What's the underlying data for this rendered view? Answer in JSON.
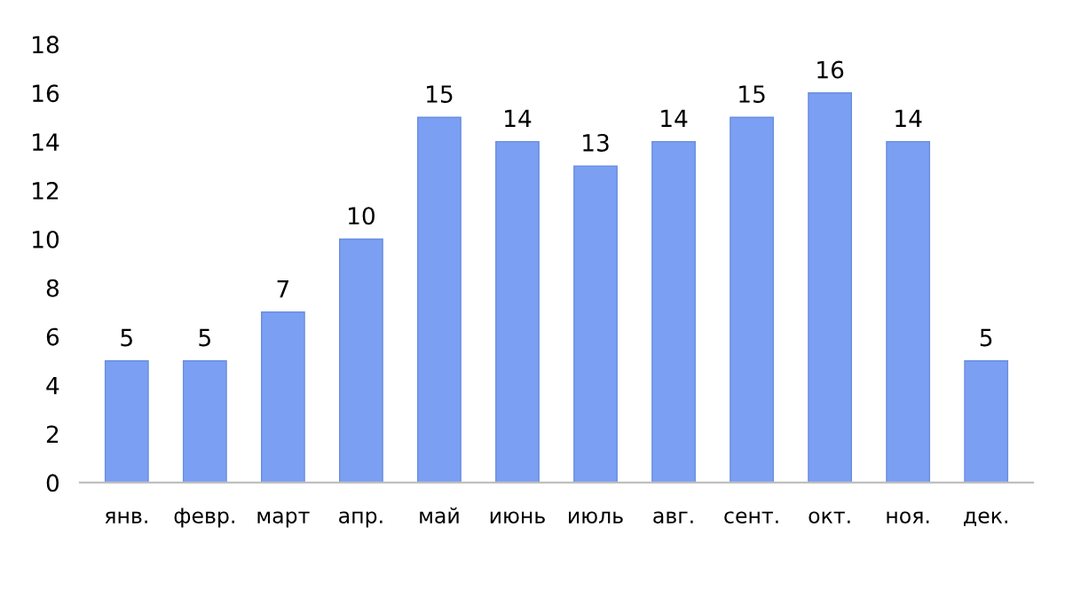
{
  "chart_data": {
    "type": "bar",
    "categories": [
      "янв.",
      "февр.",
      "март",
      "апр.",
      "май",
      "июнь",
      "июль",
      "авг.",
      "сент.",
      "окт.",
      "ноя.",
      "дек."
    ],
    "values": [
      5,
      5,
      7,
      10,
      15,
      14,
      13,
      14,
      15,
      16,
      14,
      5
    ],
    "color": "#7b9ff2",
    "ylim": [
      0,
      18
    ],
    "yticks": [
      0,
      2,
      4,
      6,
      8,
      10,
      12,
      14,
      16,
      18
    ],
    "data_labels": true
  }
}
